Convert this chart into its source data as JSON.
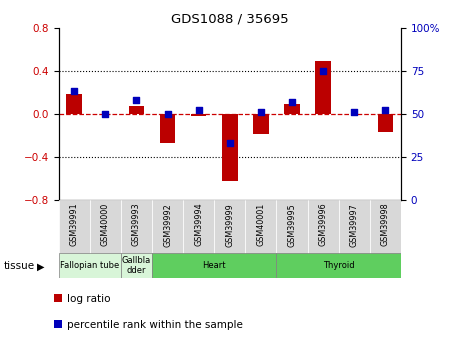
{
  "title": "GDS1088 / 35695",
  "samples": [
    "GSM39991",
    "GSM40000",
    "GSM39993",
    "GSM39992",
    "GSM39994",
    "GSM39999",
    "GSM40001",
    "GSM39995",
    "GSM39996",
    "GSM39997",
    "GSM39998"
  ],
  "log_ratio": [
    0.18,
    0.0,
    0.07,
    -0.27,
    -0.02,
    -0.62,
    -0.19,
    0.09,
    0.49,
    0.0,
    -0.17
  ],
  "percentile_rank": [
    63,
    50,
    58,
    50,
    52,
    33,
    51,
    57,
    75,
    51,
    52
  ],
  "tissues": [
    {
      "label": "Fallopian tube",
      "start": 0,
      "end": 2,
      "color": "#d8f5d8"
    },
    {
      "label": "Gallbla\ndder",
      "start": 2,
      "end": 3,
      "color": "#d8f5d8"
    },
    {
      "label": "Heart",
      "start": 3,
      "end": 7,
      "color": "#5fce5f"
    },
    {
      "label": "Thyroid",
      "start": 7,
      "end": 11,
      "color": "#5fce5f"
    }
  ],
  "ylim_left": [
    -0.8,
    0.8
  ],
  "ylim_right": [
    0,
    100
  ],
  "bar_color": "#bb0000",
  "dot_color": "#0000bb",
  "zero_line_color": "#cc0000",
  "grid_color": "black",
  "tissue_label": "tissue",
  "legend_log": "log ratio",
  "legend_pct": "percentile rank within the sample",
  "xtick_bg": "#d8d8d8",
  "left_yticks": [
    -0.8,
    -0.4,
    0.0,
    0.4,
    0.8
  ],
  "right_yticks": [
    0,
    25,
    50,
    75,
    100
  ]
}
